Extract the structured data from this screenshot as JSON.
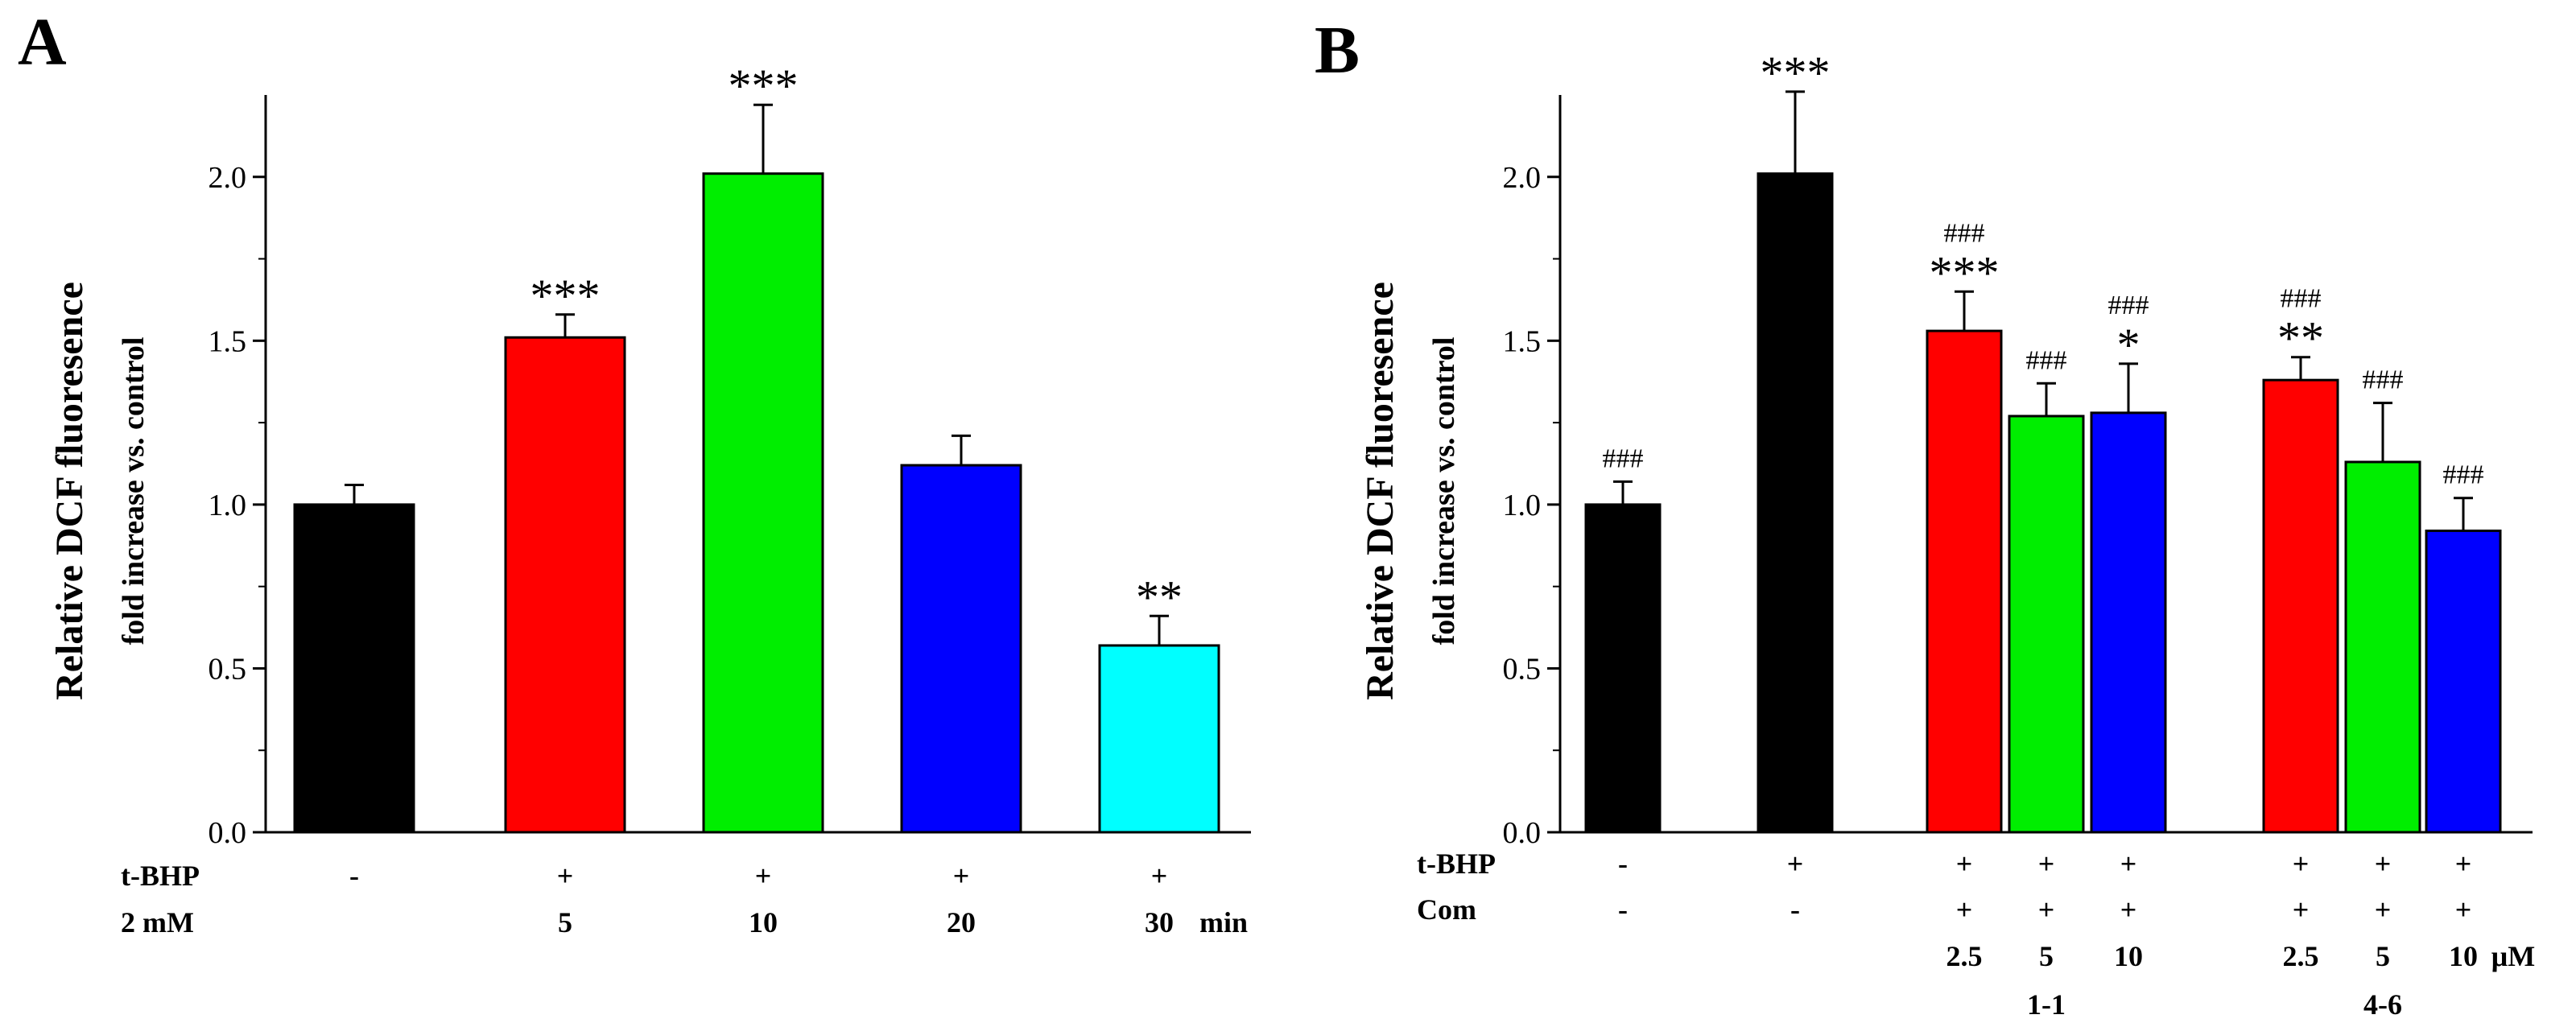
{
  "chart_data": [
    {
      "panel": "A",
      "type": "bar",
      "ylabel": "Relative DCF fluoresence",
      "ylabel_sub": "fold increase vs. control",
      "ylim": [
        0,
        2.25
      ],
      "yticks": [
        "0.0",
        "0.5",
        "1.0",
        "1.5",
        "2.0"
      ],
      "bars": [
        {
          "value": 1.0,
          "error": 0.06,
          "color": "#000000",
          "sig": ""
        },
        {
          "value": 1.51,
          "error": 0.07,
          "color": "#ff0000",
          "sig": "***"
        },
        {
          "value": 2.01,
          "error": 0.21,
          "color": "#00ee00",
          "sig": "***"
        },
        {
          "value": 1.12,
          "error": 0.09,
          "color": "#0000ff",
          "sig": ""
        },
        {
          "value": 0.57,
          "error": 0.09,
          "color": "#00ffff",
          "sig": "**"
        }
      ],
      "rows": [
        {
          "label": "t-BHP",
          "values": [
            "-",
            "+",
            "+",
            "+",
            "+"
          ],
          "unit": ""
        },
        {
          "label": "2 mM",
          "values": [
            "",
            "5",
            "10",
            "20",
            "30"
          ],
          "unit": "min"
        }
      ]
    },
    {
      "panel": "B",
      "type": "bar",
      "ylabel": "Relative DCF fluoresence",
      "ylabel_sub": "fold increase vs. control",
      "ylim": [
        0,
        2.25
      ],
      "yticks": [
        "0.0",
        "0.5",
        "1.0",
        "1.5",
        "2.0"
      ],
      "bars": [
        {
          "value": 1.0,
          "error": 0.07,
          "color": "#000000",
          "sig": "",
          "hash": "###"
        },
        {
          "value": 2.01,
          "error": 0.25,
          "color": "#000000",
          "sig": "***",
          "hash": ""
        },
        {
          "value": 1.53,
          "error": 0.12,
          "color": "#ff0000",
          "sig": "***",
          "hash": "###"
        },
        {
          "value": 1.27,
          "error": 0.1,
          "color": "#00ee00",
          "sig": "",
          "hash": "###"
        },
        {
          "value": 1.28,
          "error": 0.15,
          "color": "#0000ff",
          "sig": "*",
          "hash": "###"
        },
        {
          "value": 1.38,
          "error": 0.07,
          "color": "#ff0000",
          "sig": "**",
          "hash": "###"
        },
        {
          "value": 1.13,
          "error": 0.18,
          "color": "#00ee00",
          "sig": "",
          "hash": "###"
        },
        {
          "value": 0.92,
          "error": 0.1,
          "color": "#0000ff",
          "sig": "",
          "hash": "###"
        }
      ],
      "rows": [
        {
          "label": "t-BHP",
          "values": [
            "-",
            "+",
            "+",
            "+",
            "+",
            "+",
            "+",
            "+"
          ],
          "unit": ""
        },
        {
          "label": "Com",
          "values": [
            "-",
            "-",
            "+",
            "+",
            "+",
            "+",
            "+",
            "+"
          ],
          "unit": ""
        },
        {
          "label": "",
          "values": [
            "",
            "",
            "2.5",
            "5",
            "10",
            "2.5",
            "5",
            "10"
          ],
          "unit": "μM"
        }
      ],
      "groups": [
        "1-1",
        "4-6"
      ]
    }
  ]
}
